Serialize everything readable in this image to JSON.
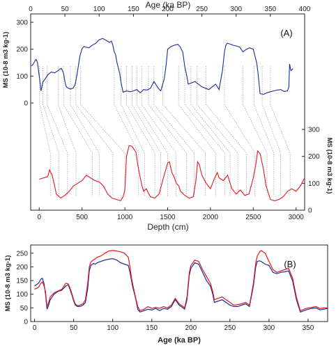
{
  "chart_data": [
    {
      "type": "line",
      "panel_label": "(A)",
      "top_axis": {
        "label": "Age (ka BP)",
        "range": [
          0,
          400
        ],
        "ticks": [
          0,
          50,
          100,
          150,
          200,
          250,
          300,
          350,
          400
        ]
      },
      "bottom_axis": {
        "label": "Depth (cm)",
        "range": [
          -100,
          3100
        ],
        "ticks": [
          0,
          500,
          1000,
          1500,
          2000,
          2500,
          3000
        ]
      },
      "left_axis": {
        "label": "MS (10-8 m3 kg-1)",
        "range": [
          0,
          300
        ],
        "ticks": [
          0,
          100,
          200,
          300
        ]
      },
      "right_axis": {
        "label": "MS (10-8 m3 kg-1)",
        "range": [
          0,
          300
        ],
        "ticks": [
          0,
          100,
          200,
          300
        ]
      },
      "series": [
        {
          "axis": "age",
          "color": "#1c2a99",
          "x": [
            1,
            3,
            5,
            7,
            8,
            10,
            12,
            14,
            15,
            16,
            18,
            20,
            25,
            30,
            35,
            40,
            43,
            45,
            48,
            50,
            52,
            55,
            58,
            62,
            65,
            68,
            70,
            72,
            75,
            78,
            80,
            85,
            90,
            95,
            100,
            105,
            110,
            115,
            118,
            120,
            122,
            124,
            126,
            128,
            130,
            132,
            135,
            140,
            145,
            150,
            155,
            160,
            165,
            170,
            175,
            180,
            185,
            188,
            190,
            192,
            195,
            198,
            200,
            205,
            210,
            215,
            218,
            220,
            222,
            225,
            228,
            230,
            235,
            240,
            245,
            250,
            255,
            260,
            265,
            270,
            275,
            280,
            283,
            285,
            287,
            290,
            295,
            300,
            305,
            310,
            315,
            320,
            325,
            330,
            332,
            335,
            340,
            345,
            350,
            355,
            360,
            365,
            370,
            375,
            377,
            378,
            380,
            383
          ],
          "y": [
            138,
            142,
            150,
            160,
            162,
            150,
            110,
            70,
            45,
            55,
            80,
            85,
            105,
            115,
            112,
            120,
            127,
            128,
            110,
            80,
            60,
            55,
            52,
            55,
            70,
            110,
            145,
            175,
            202,
            210,
            208,
            205,
            215,
            222,
            235,
            240,
            233,
            225,
            230,
            215,
            190,
            180,
            150,
            130,
            110,
            75,
            40,
            45,
            42,
            45,
            50,
            38,
            50,
            48,
            55,
            80,
            60,
            50,
            45,
            62,
            90,
            145,
            200,
            210,
            215,
            218,
            210,
            200,
            190,
            135,
            100,
            70,
            75,
            80,
            70,
            60,
            55,
            50,
            60,
            70,
            50,
            120,
            190,
            215,
            222,
            220,
            215,
            212,
            208,
            190,
            200,
            205,
            200,
            150,
            110,
            35,
            32,
            38,
            42,
            45,
            48,
            50,
            43,
            45,
            60,
            145,
            120,
            128
          ]
        },
        {
          "axis": "depth",
          "color": "#e0191f",
          "x": [
            0,
            50,
            100,
            120,
            150,
            180,
            200,
            250,
            300,
            350,
            400,
            450,
            500,
            550,
            600,
            650,
            700,
            750,
            800,
            850,
            900,
            950,
            980,
            1000,
            1020,
            1050,
            1080,
            1100,
            1130,
            1150,
            1180,
            1200,
            1220,
            1250,
            1280,
            1300,
            1350,
            1400,
            1450,
            1500,
            1520,
            1550,
            1580,
            1600,
            1630,
            1650,
            1700,
            1750,
            1800,
            1830,
            1850,
            1870,
            1900,
            1950,
            2000,
            2050,
            2080,
            2100,
            2150,
            2200,
            2250,
            2300,
            2350,
            2400,
            2450,
            2500,
            2530,
            2550,
            2580,
            2600,
            2620,
            2650,
            2700,
            2750,
            2800,
            2850,
            2900,
            2950,
            3000,
            3050,
            3100
          ],
          "y": [
            115,
            120,
            125,
            150,
            130,
            90,
            60,
            45,
            55,
            70,
            90,
            100,
            110,
            130,
            120,
            110,
            105,
            90,
            60,
            45,
            40,
            35,
            50,
            75,
            200,
            240,
            238,
            230,
            215,
            170,
            120,
            90,
            70,
            80,
            60,
            50,
            45,
            60,
            120,
            175,
            180,
            140,
            120,
            100,
            90,
            70,
            55,
            45,
            50,
            110,
            180,
            170,
            130,
            100,
            80,
            120,
            140,
            120,
            110,
            130,
            80,
            60,
            75,
            55,
            60,
            120,
            170,
            220,
            210,
            180,
            150,
            90,
            40,
            35,
            40,
            50,
            70,
            80,
            70,
            90,
            120
          ]
        }
      ]
    },
    {
      "type": "line",
      "panel_label": "(B)",
      "xlabel": "Age (ka BP)",
      "ylabel": "MS (10-8 m3 kg-1)",
      "xlim": [
        -5,
        375
      ],
      "ylim": [
        0,
        280
      ],
      "xticks": [
        0,
        50,
        100,
        150,
        200,
        250,
        300,
        350
      ],
      "yticks": [
        0,
        50,
        100,
        150,
        200,
        250
      ],
      "series": [
        {
          "color": "#1c2a99",
          "x": [
            0,
            5,
            8,
            10,
            12,
            14,
            15,
            16,
            18,
            20,
            25,
            30,
            35,
            40,
            43,
            45,
            48,
            50,
            52,
            55,
            58,
            62,
            65,
            68,
            70,
            72,
            75,
            78,
            80,
            85,
            90,
            95,
            100,
            105,
            110,
            115,
            120,
            122,
            124,
            126,
            128,
            130,
            132,
            135,
            140,
            145,
            150,
            155,
            160,
            165,
            170,
            175,
            180,
            185,
            190,
            192,
            195,
            198,
            200,
            205,
            210,
            215,
            220,
            225,
            228,
            230,
            235,
            240,
            245,
            250,
            255,
            260,
            265,
            270,
            275,
            280,
            283,
            285,
            288,
            290,
            295,
            300,
            305,
            310,
            315,
            320,
            325,
            330,
            335,
            340,
            345,
            350,
            355,
            360,
            365,
            370,
            375
          ],
          "y": [
            130,
            140,
            155,
            158,
            140,
            100,
            70,
            45,
            60,
            80,
            100,
            110,
            115,
            130,
            135,
            120,
            95,
            75,
            60,
            55,
            55,
            60,
            70,
            120,
            185,
            205,
            212,
            210,
            215,
            220,
            225,
            228,
            230,
            225,
            215,
            210,
            205,
            180,
            150,
            120,
            100,
            75,
            45,
            35,
            40,
            45,
            42,
            48,
            40,
            48,
            45,
            55,
            80,
            60,
            50,
            45,
            80,
            170,
            195,
            215,
            210,
            180,
            150,
            130,
            100,
            70,
            75,
            80,
            70,
            60,
            55,
            55,
            60,
            65,
            55,
            130,
            200,
            220,
            222,
            220,
            210,
            205,
            180,
            175,
            180,
            182,
            185,
            150,
            80,
            35,
            40,
            45,
            48,
            50,
            43,
            45,
            48
          ]
        },
        {
          "color": "#e0191f",
          "x": [
            0,
            5,
            8,
            10,
            12,
            14,
            15,
            16,
            18,
            20,
            25,
            30,
            35,
            40,
            43,
            45,
            48,
            50,
            52,
            55,
            58,
            62,
            65,
            68,
            70,
            72,
            75,
            78,
            80,
            85,
            90,
            95,
            100,
            105,
            110,
            115,
            120,
            122,
            124,
            126,
            128,
            130,
            132,
            135,
            140,
            145,
            150,
            155,
            160,
            165,
            170,
            175,
            180,
            185,
            190,
            192,
            195,
            198,
            200,
            205,
            210,
            215,
            220,
            225,
            228,
            230,
            235,
            240,
            245,
            250,
            255,
            260,
            265,
            270,
            275,
            280,
            283,
            285,
            288,
            290,
            295,
            300,
            305,
            310,
            315,
            320,
            325,
            330,
            335,
            340,
            345,
            350,
            355,
            360,
            365,
            370,
            375
          ],
          "y": [
            118,
            125,
            140,
            145,
            130,
            110,
            80,
            55,
            70,
            90,
            105,
            112,
            118,
            140,
            138,
            125,
            100,
            80,
            65,
            58,
            60,
            65,
            80,
            140,
            200,
            218,
            225,
            230,
            235,
            240,
            250,
            258,
            260,
            258,
            255,
            250,
            235,
            200,
            160,
            130,
            105,
            80,
            55,
            40,
            45,
            55,
            48,
            52,
            48,
            55,
            50,
            60,
            85,
            65,
            55,
            50,
            90,
            180,
            205,
            225,
            220,
            190,
            165,
            140,
            110,
            80,
            85,
            90,
            80,
            70,
            60,
            62,
            65,
            70,
            60,
            140,
            215,
            240,
            255,
            260,
            250,
            220,
            190,
            180,
            185,
            190,
            195,
            160,
            90,
            40,
            45,
            50,
            52,
            55,
            48,
            50,
            50
          ]
        }
      ]
    }
  ],
  "tie_lines": [
    {
      "age": 13,
      "depth": 130
    },
    {
      "age": 18,
      "depth": 230
    },
    {
      "age": 24,
      "depth": 330
    },
    {
      "age": 40,
      "depth": 430
    },
    {
      "age": 48,
      "depth": 620
    },
    {
      "age": 58,
      "depth": 700
    },
    {
      "age": 66,
      "depth": 860
    },
    {
      "age": 73,
      "depth": 1000
    },
    {
      "age": 122,
      "depth": 1160
    },
    {
      "age": 132,
      "depth": 1230
    },
    {
      "age": 140,
      "depth": 1350
    },
    {
      "age": 148,
      "depth": 1420
    },
    {
      "age": 155,
      "depth": 1500
    },
    {
      "age": 162,
      "depth": 1600
    },
    {
      "age": 172,
      "depth": 1720
    },
    {
      "age": 180,
      "depth": 1810
    },
    {
      "age": 193,
      "depth": 1940
    },
    {
      "age": 216,
      "depth": 2060
    },
    {
      "age": 225,
      "depth": 2170
    },
    {
      "age": 234,
      "depth": 2230
    },
    {
      "age": 243,
      "depth": 2320
    },
    {
      "age": 256,
      "depth": 2420
    },
    {
      "age": 283,
      "depth": 2520
    },
    {
      "age": 310,
      "depth": 2660
    },
    {
      "age": 326,
      "depth": 2740
    },
    {
      "age": 338,
      "depth": 2820
    },
    {
      "age": 350,
      "depth": 2930
    }
  ]
}
